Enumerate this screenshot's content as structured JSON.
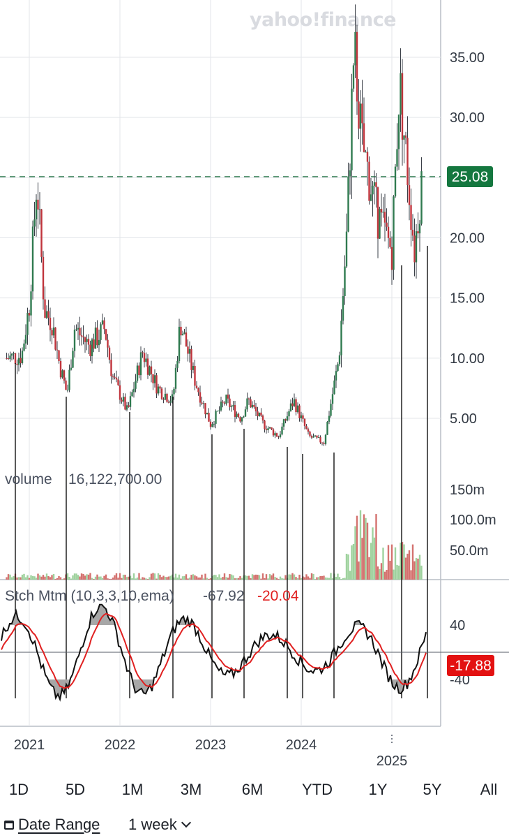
{
  "watermark": "yahoo!finance",
  "current_price_label": "25.08",
  "colors": {
    "up": "#2f7a4f",
    "down": "#c0343c",
    "price_tag": "#14773f",
    "stoch_tag": "#e31111",
    "signal": "#e02020",
    "momentum": "#111111"
  },
  "volume_label": {
    "name": "volume",
    "value": "16,122,700.00"
  },
  "stoch_label": {
    "name": "Stch Mtm (10,3,3,10,ema)",
    "value1": "-67.92",
    "value2": "-20.04"
  },
  "stoch_current_label": "-17.88",
  "ranges": [
    "1D",
    "5D",
    "1M",
    "3M",
    "6M",
    "YTD",
    "1Y",
    "5Y",
    "All"
  ],
  "controls": {
    "date_range": "Date Range",
    "interval": "1 week"
  },
  "chart_data": {
    "type": "candlestick",
    "title": "",
    "x_axis": {
      "tick_labels": [
        "2021",
        "2022",
        "2023",
        "2024",
        "2025"
      ]
    },
    "y_axis": {
      "tick_labels": [
        "5.00",
        "10.00",
        "15.00",
        "20.00",
        "25.00",
        "30.00",
        "35.00"
      ],
      "range": [
        0,
        38
      ]
    },
    "price_points": [
      {
        "date": "2020-10",
        "close": 10.0
      },
      {
        "date": "2020-12",
        "close": 10.2
      },
      {
        "date": "2021-01",
        "close": 14.5
      },
      {
        "date": "2021-02",
        "close": 25.0
      },
      {
        "date": "2021-03",
        "close": 14.0
      },
      {
        "date": "2021-04",
        "close": 13.0
      },
      {
        "date": "2021-05",
        "close": 9.5
      },
      {
        "date": "2021-06",
        "close": 7.0
      },
      {
        "date": "2021-07",
        "close": 12.5
      },
      {
        "date": "2021-09",
        "close": 11.0
      },
      {
        "date": "2021-11",
        "close": 12.5
      },
      {
        "date": "2021-12",
        "close": 8.5
      },
      {
        "date": "2022-02",
        "close": 5.5
      },
      {
        "date": "2022-04",
        "close": 10.5
      },
      {
        "date": "2022-06",
        "close": 7.5
      },
      {
        "date": "2022-08",
        "close": 6.5
      },
      {
        "date": "2022-09",
        "close": 13.0
      },
      {
        "date": "2022-11",
        "close": 8.0
      },
      {
        "date": "2023-01",
        "close": 4.5
      },
      {
        "date": "2023-03",
        "close": 6.5
      },
      {
        "date": "2023-05",
        "close": 5.0
      },
      {
        "date": "2023-06",
        "close": 6.5
      },
      {
        "date": "2023-08",
        "close": 4.5
      },
      {
        "date": "2023-10",
        "close": 3.5
      },
      {
        "date": "2023-12",
        "close": 6.5
      },
      {
        "date": "2024-02",
        "close": 3.5
      },
      {
        "date": "2024-04",
        "close": 3.0
      },
      {
        "date": "2024-06",
        "close": 10.0
      },
      {
        "date": "2024-07",
        "close": 20.0
      },
      {
        "date": "2024-08",
        "close": 36.0
      },
      {
        "date": "2024-09",
        "close": 28.0
      },
      {
        "date": "2024-11",
        "close": 22.0
      },
      {
        "date": "2025-01",
        "close": 19.0
      },
      {
        "date": "2025-02",
        "close": 33.0
      },
      {
        "date": "2025-04",
        "close": 19.0
      },
      {
        "date": "2025-05",
        "close": 25.08
      }
    ],
    "current_price": 25.08,
    "volume": {
      "tick_labels": [
        "50.0m",
        "100.0m",
        "150m"
      ],
      "latest": 16122700
    },
    "stochastic_momentum": {
      "params": "10,3,3,10,ema",
      "tick_labels": [
        "40",
        "-40"
      ],
      "values": [
        -67.92,
        -20.04
      ],
      "current": -17.88
    }
  }
}
